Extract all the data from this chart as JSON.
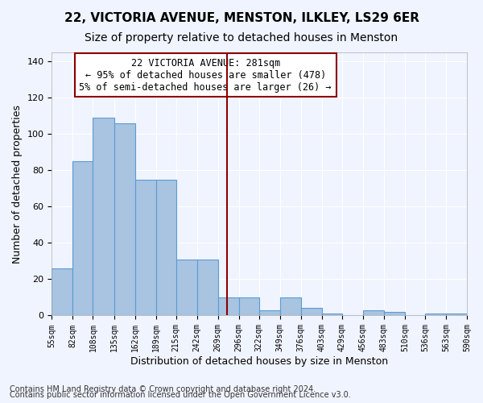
{
  "title1": "22, VICTORIA AVENUE, MENSTON, ILKLEY, LS29 6ER",
  "title2": "Size of property relative to detached houses in Menston",
  "xlabel": "Distribution of detached houses by size in Menston",
  "ylabel": "Number of detached properties",
  "footnote1": "Contains HM Land Registry data © Crown copyright and database right 2024.",
  "footnote2": "Contains public sector information licensed under the Open Government Licence v3.0.",
  "annotation_line1": "22 VICTORIA AVENUE: 281sqm",
  "annotation_line2": "← 95% of detached houses are smaller (478)",
  "annotation_line3": "5% of semi-detached houses are larger (26) →",
  "bar_color": "#a8c4e0",
  "bar_edge_color": "#5b9bd5",
  "vline_color": "#8b0000",
  "vline_x": 281,
  "bin_edges": [
    55,
    82,
    108,
    135,
    162,
    189,
    215,
    242,
    269,
    296,
    322,
    349,
    376,
    403,
    429,
    456,
    483,
    510,
    536,
    563,
    590
  ],
  "bin_counts": [
    26,
    85,
    109,
    106,
    75,
    75,
    31,
    31,
    10,
    10,
    3,
    10,
    4,
    1,
    0,
    3,
    2,
    0,
    1,
    1
  ],
  "ylim": [
    0,
    145
  ],
  "yticks": [
    0,
    20,
    40,
    60,
    80,
    100,
    120,
    140
  ],
  "bg_color": "#f0f4ff",
  "grid_color": "#ffffff",
  "title1_fontsize": 11,
  "title2_fontsize": 10,
  "annotation_fontsize": 8.5,
  "xlabel_fontsize": 9,
  "ylabel_fontsize": 9,
  "footnote_fontsize": 7
}
